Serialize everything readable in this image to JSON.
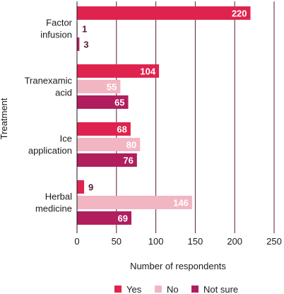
{
  "chart_data": {
    "type": "bar",
    "orientation": "horizontal",
    "categories": [
      "Factor infusion",
      "Tranexamic acid",
      "Ice application",
      "Herbal medicine"
    ],
    "category_lines": [
      [
        "Factor",
        "infusion"
      ],
      [
        "Tranexamic",
        "acid"
      ],
      [
        "Ice",
        "application"
      ],
      [
        "Herbal",
        "medicine"
      ]
    ],
    "series": [
      {
        "name": "Yes",
        "values": [
          220,
          104,
          68,
          9
        ]
      },
      {
        "name": "No",
        "values": [
          1,
          55,
          80,
          146
        ]
      },
      {
        "name": "Not sure",
        "values": [
          3,
          65,
          76,
          69
        ]
      }
    ],
    "colors": [
      "#e0234e",
      "#f2b6c3",
      "#b01e5e"
    ],
    "xlabel": "Number of respondents",
    "ylabel": "Treatment",
    "xlim": [
      0,
      250
    ],
    "xticks": [
      0,
      50,
      100,
      150,
      200,
      250
    ],
    "grid": "vertical",
    "legend_position": "bottom"
  }
}
